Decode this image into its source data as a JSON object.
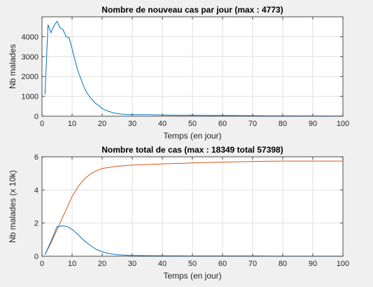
{
  "chart_data": [
    {
      "type": "line",
      "title": "Nombre de nouveau cas par jour (max : 4773)",
      "xlabel": "Temps (en jour)",
      "ylabel": "Nb malades",
      "xlim": [
        0,
        100
      ],
      "ylim": [
        0,
        5000
      ],
      "xticks": [
        0,
        10,
        20,
        30,
        40,
        50,
        60,
        70,
        80,
        90,
        100
      ],
      "yticks": [
        0,
        1000,
        2000,
        3000,
        4000
      ],
      "grid": true,
      "series": [
        {
          "color": "#0072BD",
          "x": [
            1,
            2,
            3,
            4,
            5,
            6,
            7,
            8,
            9,
            10,
            11,
            12,
            13,
            14,
            15,
            16,
            17,
            18,
            19,
            20,
            22,
            24,
            26,
            28,
            30,
            35,
            40,
            45,
            50,
            55,
            60,
            65,
            70,
            75,
            80,
            90,
            100
          ],
          "y": [
            1100,
            4600,
            4200,
            4550,
            4773,
            4450,
            4350,
            4000,
            3950,
            3400,
            2800,
            2250,
            1850,
            1450,
            1150,
            950,
            780,
            620,
            520,
            380,
            250,
            160,
            110,
            90,
            80,
            80,
            60,
            45,
            55,
            35,
            40,
            30,
            25,
            15,
            12,
            8,
            5
          ]
        }
      ]
    },
    {
      "type": "line",
      "title": "Nombre total de cas (max : 18349 total 57398)",
      "xlabel": "Temps (en jour)",
      "ylabel": "Nb malades (x 10k)",
      "xlim": [
        0,
        100
      ],
      "ylim": [
        0,
        6
      ],
      "xticks": [
        0,
        10,
        20,
        30,
        40,
        50,
        60,
        70,
        80,
        90,
        100
      ],
      "yticks": [
        0,
        2,
        4,
        6
      ],
      "grid": true,
      "series": [
        {
          "color": "#D95319",
          "x": [
            1,
            3,
            5,
            7,
            9,
            10,
            12,
            14,
            16,
            18,
            20,
            25,
            30,
            40,
            50,
            60,
            70,
            80,
            90,
            100
          ],
          "y": [
            0.1,
            0.8,
            1.6,
            2.4,
            3.2,
            3.6,
            4.2,
            4.65,
            4.95,
            5.15,
            5.3,
            5.43,
            5.5,
            5.57,
            5.63,
            5.68,
            5.72,
            5.74,
            5.74,
            5.74
          ]
        },
        {
          "color": "#0072BD",
          "x": [
            1,
            3,
            5,
            7,
            8,
            9,
            10,
            12,
            14,
            16,
            18,
            20,
            22,
            25,
            30,
            40,
            50,
            60,
            70,
            80,
            90,
            100
          ],
          "y": [
            0.1,
            0.9,
            1.78,
            1.83,
            1.8,
            1.73,
            1.62,
            1.3,
            0.95,
            0.65,
            0.42,
            0.27,
            0.17,
            0.09,
            0.04,
            0.02,
            0.01,
            0.01,
            0.01,
            0.0,
            0.0,
            0.0
          ]
        }
      ]
    }
  ]
}
